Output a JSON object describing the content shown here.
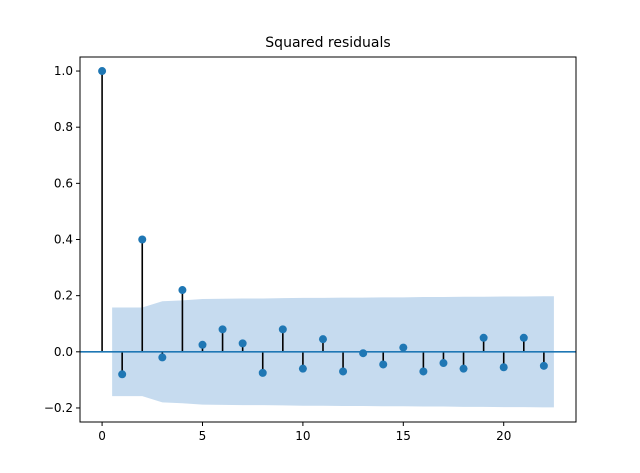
{
  "chart_data": {
    "type": "stem",
    "title": "Squared residuals",
    "xlabel": "",
    "ylabel": "",
    "xlim": [
      -1.1,
      23.6
    ],
    "ylim": [
      -0.25,
      1.05
    ],
    "xticks": [
      0,
      5,
      10,
      15,
      20
    ],
    "xtick_labels": [
      "0",
      "5",
      "10",
      "15",
      "20"
    ],
    "yticks": [
      -0.2,
      0.0,
      0.2,
      0.4,
      0.6,
      0.8,
      1.0
    ],
    "ytick_labels": [
      "−0.2",
      "0.0",
      "0.2",
      "0.4",
      "0.6",
      "0.8",
      "1.0"
    ],
    "grid": false,
    "lags": [
      0,
      1,
      2,
      3,
      4,
      5,
      6,
      7,
      8,
      9,
      10,
      11,
      12,
      13,
      14,
      15,
      16,
      17,
      18,
      19,
      20,
      21,
      22
    ],
    "values": [
      1.0,
      -0.08,
      0.4,
      -0.02,
      0.22,
      0.025,
      0.08,
      0.03,
      -0.075,
      0.08,
      -0.06,
      0.045,
      -0.07,
      -0.005,
      -0.045,
      0.015,
      -0.07,
      -0.04,
      -0.06,
      0.05,
      -0.055,
      0.05,
      -0.05
    ],
    "confidence_band": {
      "x": [
        0.5,
        1,
        2,
        3,
        4,
        5,
        6,
        7,
        8,
        9,
        10,
        11,
        12,
        13,
        14,
        15,
        16,
        17,
        18,
        19,
        20,
        21,
        22,
        22.5
      ],
      "upper": [
        0.158,
        0.158,
        0.158,
        0.18,
        0.183,
        0.188,
        0.189,
        0.19,
        0.19,
        0.191,
        0.192,
        0.192,
        0.193,
        0.193,
        0.194,
        0.194,
        0.195,
        0.195,
        0.196,
        0.196,
        0.197,
        0.197,
        0.198,
        0.198
      ]
    },
    "colors": {
      "marker": "#1f77b4",
      "stem": "#000000",
      "baseline": "#1f77b4",
      "band": "#c6dbef"
    }
  }
}
